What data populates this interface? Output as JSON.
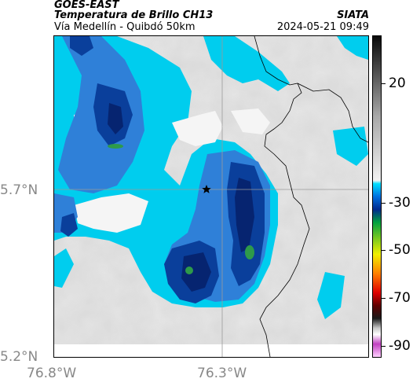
{
  "header": {
    "satellite": "GOES-EAST",
    "product": "Temperatura de Brillo CH13",
    "region": "Vía Medellín - Quibdó 50km",
    "brand": "SIATA",
    "timestamp": "2024-05-21 09:49"
  },
  "map": {
    "lat_labels": [
      "5.7°N",
      "5.2°N"
    ],
    "lon_labels": [
      "76.8°W",
      "76.3°W"
    ],
    "marker_icon": "star-icon",
    "colors": {
      "background": "#e4e4e4",
      "cyan": "#00d0f0",
      "blue": "#2e7fd6",
      "deep_blue": "#0a3f9a",
      "navy": "#06246e",
      "green": "#2e9a4a",
      "boundary": "#000000"
    }
  },
  "colorbar": {
    "labels": [
      "20",
      "-30",
      "-50",
      "-70",
      "-90"
    ],
    "values": [
      20,
      -30,
      -50,
      -70,
      -90
    ],
    "range": [
      -95,
      40
    ]
  }
}
